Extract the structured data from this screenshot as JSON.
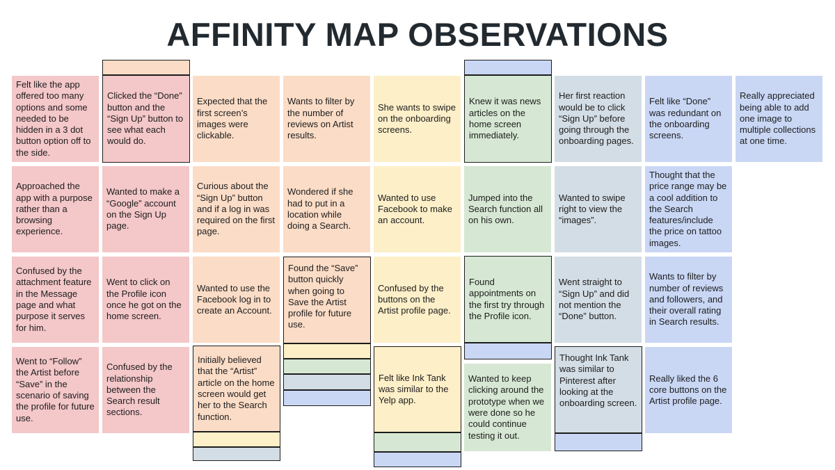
{
  "title": "AFFINITY MAP OBSERVATIONS",
  "colors": {
    "pink": "#f4c7c9",
    "peach": "#fbdcc6",
    "cream": "#fdefc8",
    "green": "#d6e8d3",
    "grey": "#d3dde5",
    "blue": "#c9d7f5"
  },
  "notes": {
    "c1r1": "Felt like the app offered too many options and some needed to be hidden in a 3 dot button option off to the side.",
    "c1r2": "Approached the app with a purpose rather than a browsing experience.",
    "c1r3": "Confused by the attachment feature in the Message page and what purpose it serves for him.",
    "c1r4": "Went to “Follow” the Artist before “Save” in the scenario of saving the profile for future use.",
    "c2r1": "Clicked the “Done” button and the “Sign Up” button to see what each would do.",
    "c2r2": "Wanted to make a “Google” account on the Sign Up page.",
    "c2r3": "Went to click on the Profile icon once he got on the home screen.",
    "c2r4": "Confused by the relationship between the Search result sections.",
    "c3r1": "Expected that the first screen’s images were clickable.",
    "c3r2": "Curious about the “Sign Up” button and if a log in was required on the first page.",
    "c3r3": "Wanted to use the Facebook log in to create an Account.",
    "c3r4": "Initially believed that the “Artist” article on the home screen would get her to the Search function.",
    "c4r1": "Wants to filter by the number of reviews on Artist results.",
    "c4r2": "Wondered if she had to put in a location while doing a Search.",
    "c4r3": "Found the “Save” button quickly when going to Save the Artist profile for future use.",
    "c5r1": "She wants to swipe on the onboarding screens.",
    "c5r2": "Wanted to use Facebook to make an account.",
    "c5r3": "Confused by the buttons on the Artist profile page.",
    "c5r4": "Felt like Ink Tank was similar to the Yelp app.",
    "c6r1": "Knew it was news articles on the home screen immediately.",
    "c6r2": "Jumped into the Search function all on his own.",
    "c6r3": "Found appointments on the first try through the Profile icon.",
    "c6r4": "Wanted to keep clicking around the prototype when we were done so he could continue testing it out.",
    "c7r1": "Her first reaction would be to click “Sign Up” before going through the onboarding pages.",
    "c7r2": "Wanted to swipe right to view the “images”.",
    "c7r3": "Went straight to “Sign Up” and did not mention the “Done” button.",
    "c7r4": "Thought Ink Tank was similar to Pinterest after looking at the onboarding screen.",
    "c8r1": "Felt like “Done” was redundant on the onboarding screens.",
    "c8r2": "Thought that the price range may be a cool addition to the Search features/include the price on tattoo images.",
    "c8r3": "Wants to filter by number of reviews and followers, and their overall rating in Search results.",
    "c8r4": "Really liked the 6 core buttons on the Artist profile page.",
    "c9r1": "Really appreciated being able to add one image to multiple collections at one time."
  }
}
